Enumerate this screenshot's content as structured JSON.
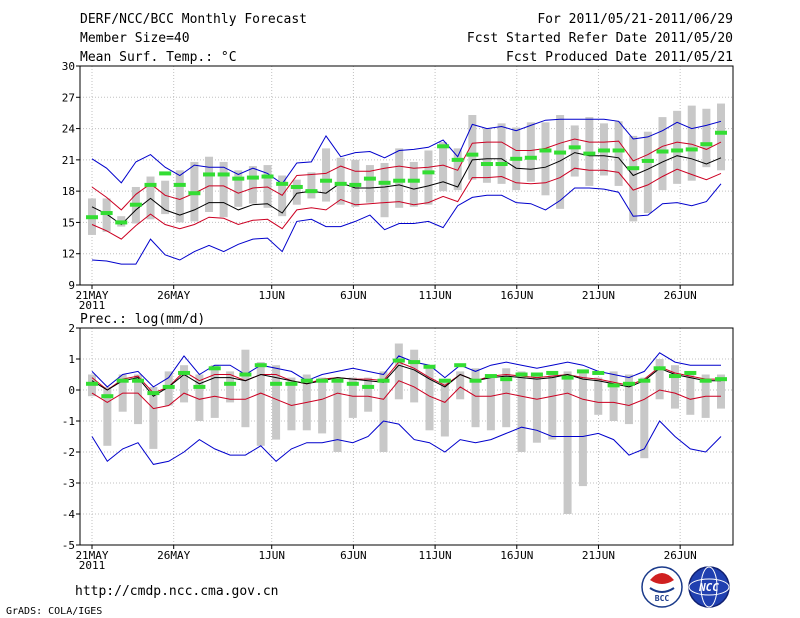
{
  "header": {
    "title": "DERF/NCC/BCC Monthly Forecast",
    "member": "Member Size=40",
    "variable": "Mean Surf. Temp.: °C",
    "period": "For 2011/05/21-2011/06/29",
    "refer": "Fcst Started Refer Date 2011/05/20",
    "produced": "Fcst Produced Date 2011/05/21"
  },
  "footer": {
    "url": "http://cmdp.ncc.cma.gov.cn",
    "grads": "GrADS: COLA/IGES",
    "logo_bcc_text": "BCC",
    "logo_ncc_text": "NCC"
  },
  "colors": {
    "grid": "#c0c0c0",
    "box": "#c8c8c8",
    "envelope": "#0000cc",
    "spread": "#cc0022",
    "mean": "#000000",
    "observed": "#33dd33"
  },
  "chart_data": [
    {
      "type": "line",
      "title": "Mean Surf. Temp.: °C",
      "ylim": [
        9,
        30
      ],
      "yticks": [
        9,
        12,
        15,
        18,
        21,
        24,
        27,
        30
      ],
      "xticks": [
        {
          "day": 0,
          "label": "21MAY",
          "sub": "2011"
        },
        {
          "day": 5,
          "label": "26MAY"
        },
        {
          "day": 11,
          "label": "1JUN"
        },
        {
          "day": 16,
          "label": "6JUN"
        },
        {
          "day": 21,
          "label": "11JUN"
        },
        {
          "day": 26,
          "label": "16JUN"
        },
        {
          "day": 31,
          "label": "21JUN"
        },
        {
          "day": 36,
          "label": "26JUN"
        }
      ],
      "series": {
        "mean": [
          16.5,
          15.8,
          14.8,
          16.2,
          17.3,
          16.2,
          15.7,
          16.2,
          16.9,
          16.9,
          16.2,
          16.7,
          16.8,
          15.9,
          17.8,
          18.0,
          17.8,
          18.8,
          18.3,
          18.3,
          18.4,
          18.6,
          18.2,
          18.5,
          18.9,
          18.4,
          21.0,
          21.1,
          21.1,
          20.2,
          20.1,
          20.3,
          20.9,
          21.7,
          21.4,
          21.4,
          21.2,
          19.5,
          20.1,
          20.8,
          21.4,
          21.1,
          20.6,
          21.2
        ],
        "upper": [
          21.1,
          20.2,
          18.8,
          20.8,
          21.5,
          20.3,
          19.5,
          20.5,
          20.3,
          20.3,
          19.6,
          20.2,
          19.7,
          18.7,
          20.7,
          20.8,
          23.3,
          21.3,
          21.7,
          21.8,
          21.2,
          21.9,
          22.0,
          22.2,
          22.9,
          21.3,
          24.4,
          24.0,
          24.2,
          23.8,
          24.3,
          24.8,
          24.9,
          24.9,
          24.9,
          24.9,
          24.7,
          23.0,
          23.2,
          23.8,
          24.6,
          24.0,
          24.3,
          24.7
        ],
        "lower": [
          11.4,
          11.3,
          11.0,
          11.0,
          13.4,
          11.9,
          11.4,
          12.2,
          12.8,
          12.2,
          12.9,
          13.4,
          13.5,
          12.2,
          15.1,
          15.3,
          14.6,
          14.6,
          15.1,
          15.7,
          14.3,
          14.9,
          14.9,
          15.1,
          14.5,
          16.6,
          17.4,
          17.6,
          17.6,
          16.9,
          16.8,
          16.2,
          17.1,
          18.3,
          18.3,
          18.2,
          17.9,
          15.6,
          15.7,
          16.8,
          16.9,
          16.6,
          17.0,
          18.7
        ],
        "spread_hi": [
          18.4,
          17.4,
          16.2,
          17.7,
          18.7,
          17.6,
          17.2,
          17.8,
          18.5,
          18.5,
          17.8,
          18.3,
          18.4,
          17.6,
          19.5,
          19.6,
          19.7,
          20.4,
          19.9,
          19.9,
          20.2,
          20.4,
          20.2,
          20.3,
          20.5,
          20.0,
          22.6,
          22.7,
          22.7,
          21.9,
          21.9,
          22.1,
          22.6,
          23.0,
          22.7,
          22.7,
          22.8,
          20.9,
          21.5,
          22.3,
          22.7,
          22.5,
          22.0,
          22.7
        ],
        "spread_lo": [
          14.8,
          14.2,
          13.4,
          14.7,
          15.8,
          14.8,
          14.4,
          14.8,
          15.5,
          15.4,
          14.8,
          15.2,
          15.3,
          14.4,
          16.2,
          16.4,
          16.2,
          17.2,
          16.7,
          16.8,
          16.9,
          17.0,
          16.7,
          16.9,
          17.5,
          17.0,
          19.3,
          19.3,
          19.4,
          18.8,
          18.7,
          18.8,
          19.3,
          20.2,
          20.0,
          20.0,
          19.8,
          18.1,
          18.6,
          19.4,
          20.1,
          19.6,
          19.1,
          19.7
        ],
        "box_hi": [
          17.3,
          17.3,
          15.6,
          18.4,
          19.4,
          19.0,
          20.0,
          20.8,
          21.3,
          20.8,
          20.0,
          20.4,
          20.5,
          19.5,
          19.1,
          19.8,
          22.1,
          21.2,
          21.0,
          20.5,
          20.7,
          22.1,
          20.8,
          21.9,
          22.7,
          22.1,
          25.3,
          24.0,
          24.5,
          24.1,
          24.6,
          24.6,
          25.3,
          24.3,
          25.1,
          24.5,
          24.7,
          23.3,
          23.7,
          25.1,
          25.7,
          26.2,
          25.9,
          26.4
        ],
        "box_lo": [
          13.8,
          14.1,
          14.6,
          14.9,
          15.3,
          15.8,
          15.0,
          15.1,
          16.0,
          15.5,
          16.5,
          16.8,
          16.4,
          15.6,
          16.7,
          17.3,
          17.0,
          16.7,
          16.5,
          16.9,
          15.5,
          16.4,
          16.5,
          16.7,
          18.0,
          18.1,
          19.1,
          18.8,
          18.7,
          18.1,
          18.9,
          17.6,
          16.3,
          19.4,
          18.5,
          19.5,
          18.5,
          15.1,
          15.9,
          18.1,
          18.7,
          19.0,
          20.3,
          20.0
        ],
        "observed": [
          15.5,
          15.9,
          15.0,
          16.7,
          18.6,
          19.7,
          18.6,
          17.8,
          19.6,
          19.6,
          19.2,
          19.3,
          19.4,
          18.7,
          18.4,
          18.0,
          19.0,
          18.7,
          18.6,
          19.2,
          18.8,
          19.0,
          19.0,
          19.8,
          22.3,
          21.0,
          21.5,
          20.6,
          20.6,
          21.1,
          21.2,
          21.9,
          21.7,
          22.2,
          21.6,
          21.9,
          21.9,
          20.2,
          20.9,
          21.8,
          21.9,
          22.0,
          22.5,
          23.6
        ]
      }
    },
    {
      "type": "line",
      "title": "Prec.: log(mm/d)",
      "ylim": [
        -5,
        2
      ],
      "yticks": [
        -5,
        -4,
        -3,
        -2,
        -1,
        0,
        1,
        2
      ],
      "xticks": [
        {
          "day": 0,
          "label": "21MAY",
          "sub": "2011"
        },
        {
          "day": 5,
          "label": "26MAY"
        },
        {
          "day": 11,
          "label": "1JUN"
        },
        {
          "day": 16,
          "label": "6JUN"
        },
        {
          "day": 21,
          "label": "11JUN"
        },
        {
          "day": 26,
          "label": "16JUN"
        },
        {
          "day": 31,
          "label": "21JUN"
        },
        {
          "day": 36,
          "label": "26JUN"
        }
      ],
      "series": {
        "mean": [
          0.3,
          0.0,
          0.3,
          0.4,
          -0.2,
          0.1,
          0.5,
          0.2,
          0.4,
          0.4,
          0.3,
          0.5,
          0.4,
          0.3,
          0.2,
          0.3,
          0.4,
          0.35,
          0.3,
          0.25,
          0.8,
          0.65,
          0.35,
          0.1,
          0.5,
          0.3,
          0.4,
          0.45,
          0.4,
          0.35,
          0.4,
          0.5,
          0.35,
          0.3,
          0.2,
          0.1,
          0.3,
          0.7,
          0.5,
          0.4,
          0.3,
          0.3
        ],
        "upper": [
          0.6,
          0.1,
          0.5,
          0.6,
          0.1,
          0.4,
          1.1,
          0.5,
          0.8,
          0.8,
          0.5,
          0.8,
          0.7,
          0.6,
          0.3,
          0.5,
          0.6,
          0.7,
          0.6,
          0.5,
          1.1,
          0.9,
          0.8,
          0.4,
          0.8,
          0.6,
          0.8,
          0.9,
          0.8,
          0.7,
          0.8,
          0.9,
          0.8,
          0.6,
          0.5,
          0.4,
          0.6,
          1.2,
          0.9,
          0.8,
          0.8,
          0.8
        ],
        "lower": [
          -1.5,
          -2.3,
          -1.9,
          -1.7,
          -2.4,
          -2.3,
          -2.0,
          -1.6,
          -1.9,
          -2.1,
          -2.1,
          -1.8,
          -2.3,
          -1.9,
          -1.7,
          -1.7,
          -1.6,
          -1.7,
          -1.5,
          -1.0,
          -1.1,
          -1.6,
          -1.7,
          -2.0,
          -1.6,
          -1.7,
          -1.6,
          -1.4,
          -1.2,
          -1.3,
          -1.5,
          -1.5,
          -1.5,
          -1.4,
          -1.6,
          -2.1,
          -1.9,
          -1.0,
          -1.5,
          -1.9,
          -2.0,
          -1.5
        ],
        "spread_hi": [
          0.4,
          0.0,
          0.35,
          0.45,
          -0.1,
          0.1,
          0.6,
          0.3,
          0.5,
          0.5,
          0.3,
          0.5,
          0.5,
          0.3,
          0.2,
          0.35,
          0.4,
          0.35,
          0.35,
          0.3,
          0.9,
          0.7,
          0.4,
          0.15,
          0.5,
          0.3,
          0.45,
          0.5,
          0.45,
          0.4,
          0.45,
          0.5,
          0.4,
          0.35,
          0.25,
          0.15,
          0.35,
          0.75,
          0.55,
          0.45,
          0.35,
          0.35
        ],
        "spread_lo": [
          -0.1,
          -0.4,
          -0.1,
          -0.1,
          -0.6,
          -0.5,
          -0.1,
          -0.3,
          -0.2,
          -0.3,
          -0.3,
          -0.1,
          -0.3,
          -0.5,
          -0.4,
          -0.3,
          -0.1,
          -0.2,
          -0.2,
          -0.3,
          0.3,
          0.1,
          -0.2,
          -0.4,
          0.1,
          -0.2,
          -0.2,
          -0.1,
          -0.2,
          -0.3,
          -0.2,
          -0.1,
          -0.3,
          -0.4,
          -0.4,
          -0.5,
          -0.3,
          0.0,
          -0.1,
          -0.3,
          -0.2,
          -0.2
        ],
        "box_hi": [
          0.5,
          0.1,
          0.5,
          0.5,
          0.1,
          0.6,
          0.8,
          0.5,
          0.8,
          0.6,
          1.3,
          0.9,
          0.8,
          0.4,
          0.5,
          0.4,
          0.3,
          0.4,
          0.4,
          0.6,
          1.5,
          1.3,
          0.7,
          0.3,
          0.6,
          0.7,
          0.5,
          0.7,
          0.6,
          0.5,
          0.6,
          0.6,
          0.6,
          0.4,
          0.6,
          0.5,
          0.4,
          1.0,
          0.8,
          0.6,
          0.5,
          0.5
        ],
        "box_lo": [
          -0.2,
          -1.8,
          -0.7,
          -1.1,
          -1.9,
          -0.5,
          -0.4,
          -1.0,
          -0.9,
          -0.4,
          -1.2,
          -1.8,
          -1.6,
          -1.3,
          -1.3,
          -1.4,
          -2.0,
          -0.9,
          -0.7,
          -2.0,
          -0.3,
          -0.4,
          -1.3,
          -1.5,
          -0.3,
          -1.2,
          -1.3,
          -1.2,
          -2.0,
          -1.7,
          -1.6,
          -4.0,
          -3.1,
          -0.8,
          -1.0,
          -1.1,
          -2.2,
          -0.3,
          -0.6,
          -0.8,
          -0.9,
          -0.6
        ],
        "observed": [
          0.2,
          -0.2,
          0.3,
          0.3,
          -0.1,
          0.1,
          0.55,
          0.1,
          0.7,
          0.2,
          0.5,
          0.8,
          0.2,
          0.2,
          0.3,
          0.3,
          0.3,
          0.2,
          0.1,
          0.3,
          0.95,
          0.9,
          0.75,
          0.3,
          0.8,
          0.3,
          0.45,
          0.35,
          0.5,
          0.5,
          0.55,
          0.4,
          0.6,
          0.55,
          0.15,
          0.2,
          0.3,
          0.7,
          0.45,
          0.55,
          0.3,
          0.35
        ]
      }
    }
  ]
}
